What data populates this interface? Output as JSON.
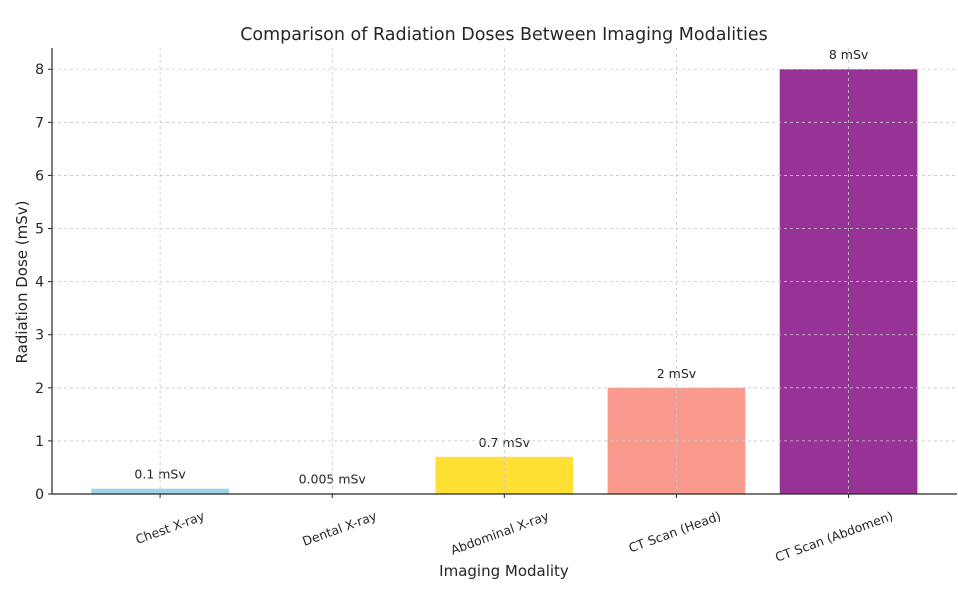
{
  "chart_data": {
    "type": "bar",
    "title": "Comparison of Radiation Doses Between Imaging Modalities",
    "xlabel": "Imaging Modality",
    "ylabel": "Radiation Dose (mSv)",
    "categories": [
      "Chest X-ray",
      "Dental X-ray",
      "Abdominal X-ray",
      "CT Scan (Head)",
      "CT Scan (Abdomen)"
    ],
    "values": [
      0.1,
      0.005,
      0.7,
      2,
      8
    ],
    "data_labels": [
      "0.1 mSv",
      "0.005 mSv",
      "0.7 mSv",
      "2 mSv",
      "8 mSv"
    ],
    "colors": [
      "#9fd3e8",
      "#f0d8a8",
      "#ffe033",
      "#f99a8c",
      "#973396"
    ],
    "ylim": [
      0,
      8.4
    ],
    "yticks": [
      0,
      1,
      2,
      3,
      4,
      5,
      6,
      7,
      8
    ],
    "grid": true,
    "xtick_rotation": 20
  }
}
